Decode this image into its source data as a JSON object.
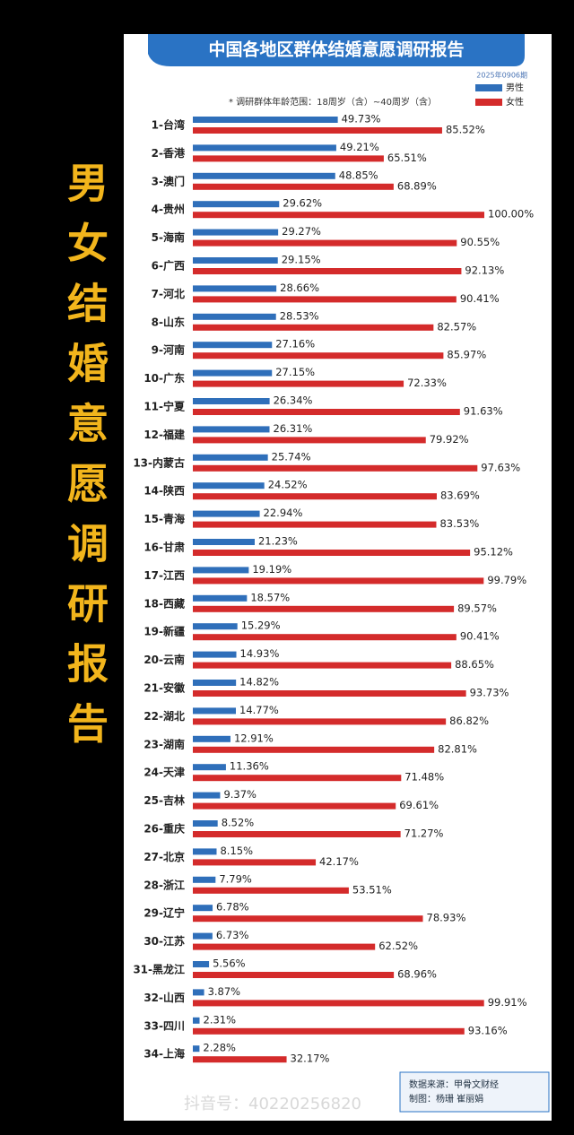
{
  "side_title": "男女结婚意愿调研报告",
  "watermark": "抖音号：40220256820",
  "chart_data": {
    "type": "bar",
    "orientation": "horizontal",
    "title": "中国各地区群体结婚意愿调研报告",
    "edition": "2025年0906期",
    "note": "* 调研群体年龄范围：18周岁（含）~40周岁（含）",
    "categories": [
      "1-台湾",
      "2-香港",
      "3-澳门",
      "4-贵州",
      "5-海南",
      "6-广西",
      "7-河北",
      "8-山东",
      "9-河南",
      "10-广东",
      "11-宁夏",
      "12-福建",
      "13-内蒙古",
      "14-陕西",
      "15-青海",
      "16-甘肃",
      "17-江西",
      "18-西藏",
      "19-新疆",
      "20-云南",
      "21-安徽",
      "22-湖北",
      "23-湖南",
      "24-天津",
      "25-吉林",
      "26-重庆",
      "27-北京",
      "28-浙江",
      "29-辽宁",
      "30-江苏",
      "31-黑龙江",
      "32-山西",
      "33-四川",
      "34-上海"
    ],
    "series": [
      {
        "name": "男性",
        "color": "#2f6fba",
        "values": [
          49.73,
          49.21,
          48.85,
          29.62,
          29.27,
          29.15,
          28.66,
          28.53,
          27.16,
          27.15,
          26.34,
          26.31,
          25.74,
          24.52,
          22.94,
          21.23,
          19.19,
          18.57,
          15.29,
          14.93,
          14.82,
          14.77,
          12.91,
          11.36,
          9.37,
          8.52,
          8.15,
          7.79,
          6.78,
          6.73,
          5.56,
          3.87,
          2.31,
          2.28
        ],
        "value_labels": [
          "49.73%",
          "49.21%",
          "48.85%",
          "29.62%",
          "29.27%",
          "29.15%",
          "28.66%",
          "28.53%",
          "27.16%",
          "27.15%",
          "26.34%",
          "26.31%",
          "25.74%",
          "24.52%",
          "22.94%",
          "21.23%",
          "19.19%",
          "18.57%",
          "15.29%",
          "14.93%",
          "14.82%",
          "14.77%",
          "12.91%",
          "11.36%",
          "9.37%",
          "8.52%",
          "8.15%",
          "7.79%",
          "6.78%",
          "6.73%",
          "5.56%",
          "3.87%",
          "2.31%",
          "2.28%"
        ]
      },
      {
        "name": "女性",
        "color": "#d42b2b",
        "values": [
          85.52,
          65.51,
          68.89,
          100.0,
          90.55,
          92.13,
          90.41,
          82.57,
          85.97,
          72.33,
          91.63,
          79.92,
          97.63,
          83.69,
          83.53,
          95.12,
          99.79,
          89.57,
          90.41,
          88.65,
          93.73,
          86.82,
          82.81,
          71.48,
          69.61,
          71.27,
          42.17,
          53.51,
          78.93,
          62.52,
          68.96,
          99.91,
          93.16,
          32.17
        ],
        "value_labels": [
          "85.52%",
          "65.51%",
          "68.89%",
          "100.00%",
          "90.55%",
          "92.13%",
          "90.41%",
          "82.57%",
          "85.97%",
          "72.33%",
          "91.63%",
          "79.92%",
          "97.63%",
          "83.69%",
          "83.53%",
          "95.12%",
          "99.79%",
          "89.57%",
          "90.41%",
          "88.65%",
          "93.73%",
          "86.82%",
          "82.81%",
          "71.48%",
          "69.61%",
          "71.27%",
          "42.17%",
          "53.51%",
          "78.93%",
          "62.52%",
          "68.96%",
          "99.91%",
          "93.16%",
          "32.17%"
        ]
      }
    ],
    "xlim": [
      0,
      100
    ],
    "source": "数据来源：甲骨文财经",
    "credit": "制图：杨珊 崔丽娟"
  }
}
